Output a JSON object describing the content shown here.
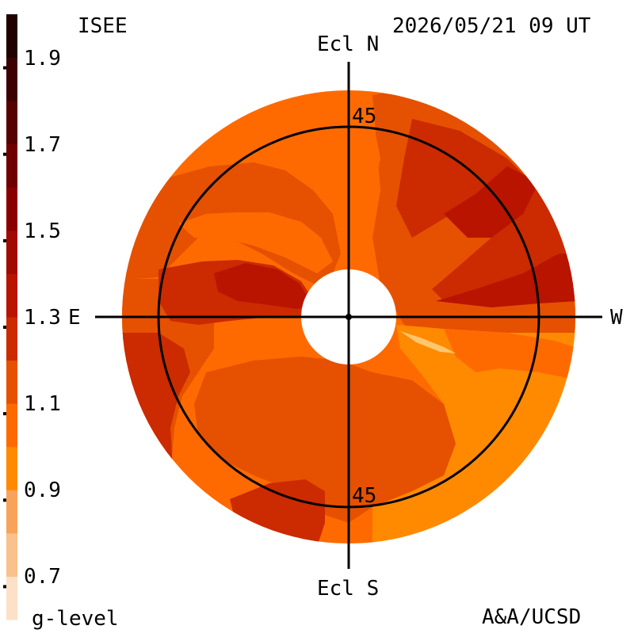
{
  "header": {
    "source_label": "ISEE",
    "timestamp": "2026/05/21 09 UT"
  },
  "footer": {
    "colorbar_title": "g-level",
    "credit": "A&A/UCSD"
  },
  "axes": {
    "north": "Ecl N",
    "south": "Ecl S",
    "east": "E",
    "west": "W",
    "ring_label_top": "45",
    "ring_label_bottom": "45"
  },
  "colorbar": {
    "min": 0.6,
    "max": 2.0,
    "tick_labels": [
      "1.9",
      "1.7",
      "1.5",
      "1.3",
      "1.1",
      "0.9",
      "0.7"
    ],
    "tick_values": [
      1.9,
      1.7,
      1.5,
      1.3,
      1.1,
      0.9,
      0.7
    ],
    "bands": [
      {
        "from": 0.6,
        "to": 0.7,
        "color": "#fce0c8"
      },
      {
        "from": 0.7,
        "to": 0.8,
        "color": "#f9c18b"
      },
      {
        "from": 0.8,
        "to": 0.9,
        "color": "#f9a35a"
      },
      {
        "from": 0.9,
        "to": 1.0,
        "color": "#ff8a00"
      },
      {
        "from": 1.0,
        "to": 1.1,
        "color": "#ff6a00"
      },
      {
        "from": 1.1,
        "to": 1.2,
        "color": "#e55100"
      },
      {
        "from": 1.2,
        "to": 1.3,
        "color": "#cc2a00"
      },
      {
        "from": 1.3,
        "to": 1.4,
        "color": "#b81400"
      },
      {
        "from": 1.4,
        "to": 1.5,
        "color": "#a00a00"
      },
      {
        "from": 1.5,
        "to": 1.6,
        "color": "#8a0000"
      },
      {
        "from": 1.6,
        "to": 1.7,
        "color": "#700000"
      },
      {
        "from": 1.7,
        "to": 1.8,
        "color": "#560000"
      },
      {
        "from": 1.8,
        "to": 1.9,
        "color": "#3c0000"
      },
      {
        "from": 1.9,
        "to": 2.0,
        "color": "#200000"
      }
    ]
  },
  "map_colors": {
    "level_0_9": "#ff8a00",
    "level_1_0": "#ff6a00",
    "level_1_1": "#e55100",
    "level_1_2": "#cc2a00",
    "level_1_3": "#b81400",
    "highlight": "#ffc66e",
    "occulter": "#ffffff",
    "line": "#000000"
  }
}
